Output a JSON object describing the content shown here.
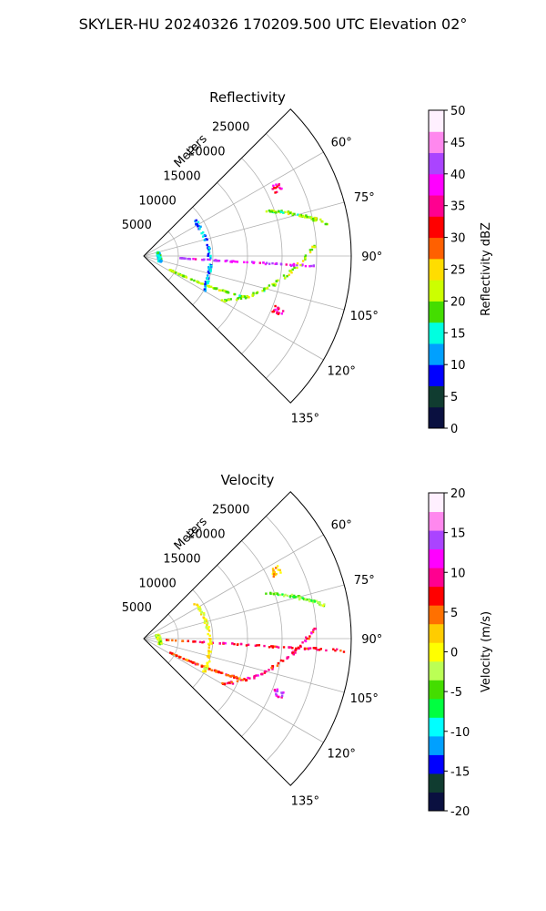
{
  "figure": {
    "title": "SKYLER-HU  20240326  170209.500 UTC Elevation 02°"
  },
  "chart_data": [
    {
      "type": "scatter",
      "title": "Reflectivity",
      "radial_label": "Meters",
      "radial_ticks": [
        "5000",
        "10000",
        "15000",
        "20000",
        "25000"
      ],
      "radial_tick_values": [
        5000,
        10000,
        15000,
        20000,
        25000
      ],
      "radial_max": 30000,
      "angle_ticks": [
        "60°",
        "75°",
        "90°",
        "105°",
        "120°",
        "135°"
      ],
      "angle_tick_values": [
        60,
        75,
        90,
        105,
        120,
        135
      ],
      "angle_range": [
        45,
        135
      ],
      "colorbar": {
        "label": "Reflectivity dBZ",
        "ticks": [
          "0",
          "5",
          "10",
          "15",
          "20",
          "25",
          "30",
          "35",
          "40",
          "45",
          "50"
        ],
        "range": [
          0,
          50
        ],
        "stops": [
          "#0a1040",
          "#103c30",
          "#0000ff",
          "#00a0ff",
          "#00ffe0",
          "#44dd00",
          "#ccff00",
          "#ffdd00",
          "#ff6000",
          "#ff0000",
          "#ff0090",
          "#ff00ff",
          "#aa44ff",
          "#ff88ee",
          "#fff0ff"
        ]
      },
      "series": [
        {
          "r": [
            5000,
            25000
          ],
          "theta": [
            93.5,
            93.5
          ],
          "values": [
            40,
            40
          ],
          "kind": "line"
        },
        {
          "r": [
            13000,
            25000
          ],
          "theta": [
            120,
            86
          ],
          "values": [
            20,
            20
          ],
          "kind": "line"
        },
        {
          "r": [
            4000,
            16000
          ],
          "theta": [
            118,
            112
          ],
          "values": [
            20,
            20
          ],
          "kind": "arc"
        },
        {
          "r": [
            9000,
            10000
          ],
          "theta": [
            55,
            120
          ],
          "values": [
            12,
            12
          ],
          "kind": "arc"
        },
        {
          "r": [
            2000,
            2500
          ],
          "theta": [
            75,
            110
          ],
          "values": [
            15,
            15
          ],
          "kind": "arc"
        },
        {
          "r": [
            19000,
            27000
          ],
          "theta": [
            70,
            80
          ],
          "values": [
            20,
            20
          ],
          "kind": "line"
        },
        {
          "r": [
            21000
          ],
          "theta": [
            112
          ],
          "values": [
            35
          ],
          "kind": "cluster"
        },
        {
          "r": [
            21500
          ],
          "theta": [
            63
          ],
          "values": [
            35
          ],
          "kind": "cluster"
        }
      ]
    },
    {
      "type": "scatter",
      "title": "Velocity",
      "radial_label": "Meters",
      "radial_ticks": [
        "5000",
        "10000",
        "15000",
        "20000",
        "25000"
      ],
      "radial_tick_values": [
        5000,
        10000,
        15000,
        20000,
        25000
      ],
      "radial_max": 30000,
      "angle_ticks": [
        "60°",
        "75°",
        "90°",
        "105°",
        "120°",
        "135°"
      ],
      "angle_tick_values": [
        60,
        75,
        90,
        105,
        120,
        135
      ],
      "angle_range": [
        45,
        135
      ],
      "colorbar": {
        "label": "Velocity (m/s)",
        "ticks": [
          "-20",
          "-15",
          "-10",
          "-5",
          "0",
          "5",
          "10",
          "15",
          "20"
        ],
        "range": [
          -20,
          20
        ],
        "stops": [
          "#0a1040",
          "#103c30",
          "#0000ff",
          "#00a0ff",
          "#00ffff",
          "#00ff40",
          "#44dd00",
          "#bbff55",
          "#ffff00",
          "#ffcc00",
          "#ff7000",
          "#ff0000",
          "#ff0090",
          "#ff00ff",
          "#aa44ff",
          "#ff88ee",
          "#fff0ff"
        ]
      },
      "series": [
        {
          "r": [
            2000,
            30000
          ],
          "theta": [
            93.5,
            93.5
          ],
          "values": [
            8,
            8
          ],
          "kind": "line"
        },
        {
          "r": [
            13000,
            25000
          ],
          "theta": [
            120,
            86
          ],
          "values": [
            8,
            8
          ],
          "kind": "line"
        },
        {
          "r": [
            4000,
            16000
          ],
          "theta": [
            118,
            112
          ],
          "values": [
            6,
            6
          ],
          "kind": "arc"
        },
        {
          "r": [
            9000,
            10000
          ],
          "theta": [
            55,
            120
          ],
          "values": [
            0,
            0
          ],
          "kind": "arc"
        },
        {
          "r": [
            2000,
            2500
          ],
          "theta": [
            75,
            110
          ],
          "values": [
            -2,
            -2
          ],
          "kind": "arc"
        },
        {
          "r": [
            19000,
            27000
          ],
          "theta": [
            70,
            80
          ],
          "values": [
            -4,
            -4
          ],
          "kind": "line"
        },
        {
          "r": [
            21000
          ],
          "theta": [
            112
          ],
          "values": [
            12
          ],
          "kind": "cluster"
        },
        {
          "r": [
            21500
          ],
          "theta": [
            63
          ],
          "values": [
            2
          ],
          "kind": "cluster"
        }
      ]
    }
  ]
}
